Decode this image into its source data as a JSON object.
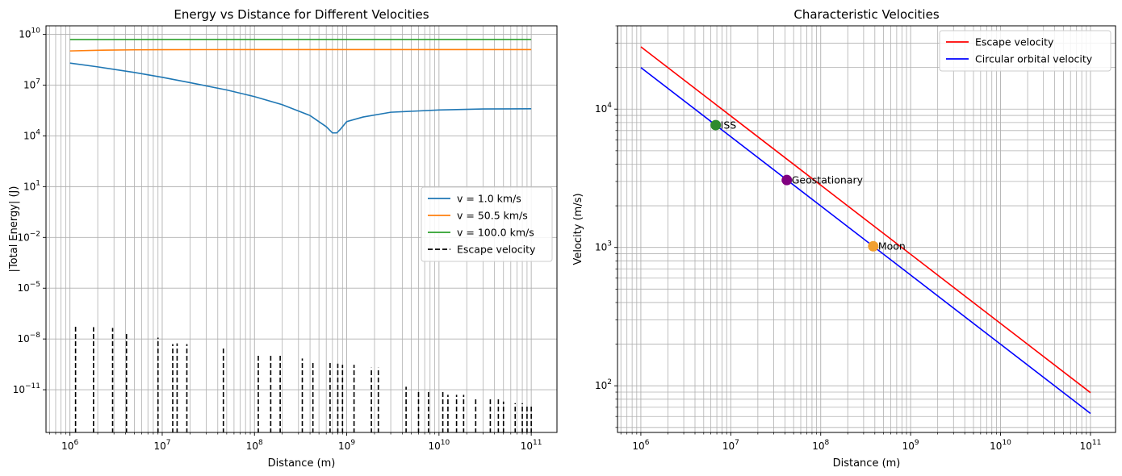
{
  "chart_data": [
    {
      "type": "line",
      "title": "Energy vs Distance for Different Velocities",
      "xlabel": "Distance (m)",
      "ylabel": "|Total Energy| (J)",
      "xscale": "log",
      "yscale": "log",
      "xlim": [
        550000.0,
        190000000000.0
      ],
      "ylim": [
        3e-14,
        32000000000.0
      ],
      "x_ticks": [
        {
          "value": 1000000.0,
          "base": "10",
          "exp": "6"
        },
        {
          "value": 10000000.0,
          "base": "10",
          "exp": "7"
        },
        {
          "value": 100000000.0,
          "base": "10",
          "exp": "8"
        },
        {
          "value": 1000000000.0,
          "base": "10",
          "exp": "9"
        },
        {
          "value": 10000000000.0,
          "base": "10",
          "exp": "10"
        },
        {
          "value": 100000000000.0,
          "base": "10",
          "exp": "11"
        }
      ],
      "y_ticks": [
        {
          "value": 1e-11,
          "base": "10",
          "exp": "−11"
        },
        {
          "value": 1e-08,
          "base": "10",
          "exp": "−8"
        },
        {
          "value": 1e-05,
          "base": "10",
          "exp": "−5"
        },
        {
          "value": 0.01,
          "base": "10",
          "exp": "−2"
        },
        {
          "value": 10.0,
          "base": "10",
          "exp": "1"
        },
        {
          "value": 10000.0,
          "base": "10",
          "exp": "4"
        },
        {
          "value": 10000000.0,
          "base": "10",
          "exp": "7"
        },
        {
          "value": 10000000000.0,
          "base": "10",
          "exp": "10"
        }
      ],
      "grid": true,
      "legend_position": "center-right",
      "series": [
        {
          "name": "v = 1.0 km/s",
          "color": "#1f77b4",
          "style": "solid",
          "points": [
            [
              1000000.0,
              200000000.0
            ],
            [
              2000000.0,
              120000000.0
            ],
            [
              5000000.0,
              56000000.0
            ],
            [
              10000000.0,
              29000000.0
            ],
            [
              20000000.0,
              14000000.0
            ],
            [
              50000000.0,
              5200000.0
            ],
            [
              100000000.0,
              2100000.0
            ],
            [
              200000000.0,
              700000.0
            ],
            [
              400000000.0,
              160000.0
            ],
            [
              600000000.0,
              35000.0
            ],
            [
              700000000.0,
              15000.0
            ],
            [
              780000000.0,
              15000.0
            ],
            [
              850000000.0,
              24000.0
            ],
            [
              1000000000.0,
              70000.0
            ],
            [
              1500000000.0,
              130000.0
            ],
            [
              3000000000.0,
              250000.0
            ],
            [
              10000000000.0,
              340000.0
            ],
            [
              30000000000.0,
              390000.0
            ],
            [
              100000000000.0,
              400000.0
            ]
          ]
        },
        {
          "name": "v = 50.5 km/s",
          "color": "#ff7f0e",
          "style": "solid",
          "points": [
            [
              1000000.0,
              1050000000.0
            ],
            [
              2000000.0,
              1150000000.0
            ],
            [
              5000000.0,
              1220000000.0
            ],
            [
              10000000.0,
              1240000000.0
            ],
            [
              100000000.0,
              1270000000.0
            ],
            [
              1000000000.0,
              1270000000.0
            ],
            [
              10000000000.0,
              1270000000.0
            ],
            [
              100000000000.0,
              1270000000.0
            ]
          ]
        },
        {
          "name": "v = 100.0 km/s",
          "color": "#2ca02c",
          "style": "solid",
          "points": [
            [
              1000000.0,
              4900000000.0
            ],
            [
              10000000.0,
              4980000000.0
            ],
            [
              100000000.0,
              5000000000.0
            ],
            [
              1000000000.0,
              5000000000.0
            ],
            [
              10000000000.0,
              5000000000.0
            ],
            [
              100000000000.0,
              5000000000.0
            ]
          ]
        },
        {
          "name": "Escape velocity",
          "color": "#000000",
          "style": "dashed",
          "spikes": [
            [
              1150000.0,
              7e-08
            ],
            [
              1800000.0,
              5e-08
            ],
            [
              2900000.0,
              4.5e-08
            ],
            [
              4100000.0,
              2e-08
            ],
            [
              9000000.0,
              1.2e-08
            ],
            [
              13000000.0,
              5e-09
            ],
            [
              14500000.0,
              5.5e-09
            ],
            [
              18500000.0,
              5e-09
            ],
            [
              46000000.0,
              3e-09
            ],
            [
              110000000.0,
              1.4e-09
            ],
            [
              150000000.0,
              1.4e-09
            ],
            [
              190000000.0,
              1.4e-09
            ],
            [
              330000000.0,
              7e-10
            ],
            [
              430000000.0,
              4.5e-10
            ],
            [
              660000000.0,
              4.5e-10
            ],
            [
              800000000.0,
              3.5e-10
            ],
            [
              900000000.0,
              3e-10
            ],
            [
              1200000000.0,
              3e-10
            ],
            [
              1850000000.0,
              2e-10
            ],
            [
              2200000000.0,
              2e-10
            ],
            [
              4400000000.0,
              1.5e-11
            ],
            [
              6000000000.0,
              8e-12
            ],
            [
              7700000000.0,
              8e-12
            ],
            [
              11000000000.0,
              8e-12
            ],
            [
              12500000000.0,
              5e-12
            ],
            [
              15500000000.0,
              5e-12
            ],
            [
              18500000000.0,
              5e-12
            ],
            [
              25000000000.0,
              3.5e-12
            ],
            [
              36000000000.0,
              3.5e-12
            ],
            [
              44000000000.0,
              3e-12
            ],
            [
              50000000000.0,
              2e-12
            ],
            [
              67000000000.0,
              1.6e-12
            ],
            [
              80000000000.0,
              1.6e-12
            ],
            [
              90000000000.0,
              1.2e-12
            ],
            [
              100000000000.0,
              1.2e-12
            ]
          ]
        }
      ]
    },
    {
      "type": "line",
      "title": "Characteristic Velocities",
      "xlabel": "Distance (m)",
      "ylabel": "Velocity (m/s)",
      "xscale": "log",
      "yscale": "log",
      "xlim": [
        550000.0,
        190000000000.0
      ],
      "ylim": [
        46,
        40000
      ],
      "x_ticks": [
        {
          "value": 1000000.0,
          "base": "10",
          "exp": "6"
        },
        {
          "value": 10000000.0,
          "base": "10",
          "exp": "7"
        },
        {
          "value": 100000000.0,
          "base": "10",
          "exp": "8"
        },
        {
          "value": 1000000000.0,
          "base": "10",
          "exp": "9"
        },
        {
          "value": 10000000000.0,
          "base": "10",
          "exp": "10"
        },
        {
          "value": 100000000000.0,
          "base": "10",
          "exp": "11"
        }
      ],
      "y_ticks": [
        {
          "value": 100,
          "base": "10",
          "exp": "2"
        },
        {
          "value": 1000,
          "base": "10",
          "exp": "3"
        },
        {
          "value": 10000,
          "base": "10",
          "exp": "4"
        }
      ],
      "grid": true,
      "legend_position": "top-right",
      "series": [
        {
          "name": "Escape velocity",
          "color": "#ff0000",
          "style": "solid",
          "points": [
            [
              1000000.0,
              28200
            ],
            [
              100000000000.0,
              89.2
            ]
          ]
        },
        {
          "name": "Circular orbital velocity",
          "color": "#0000ff",
          "style": "solid",
          "points": [
            [
              1000000.0,
              19970
            ],
            [
              100000000000.0,
              63.1
            ]
          ]
        }
      ],
      "points": [
        {
          "label": "ISS",
          "x": 6800000.0,
          "y": 7660,
          "color": "#2e8b2e"
        },
        {
          "label": "Geostationary",
          "x": 42000000.0,
          "y": 3070,
          "color": "#800080"
        },
        {
          "label": "Moon",
          "x": 384000000.0,
          "y": 1020,
          "color": "#f0a030"
        }
      ]
    }
  ]
}
